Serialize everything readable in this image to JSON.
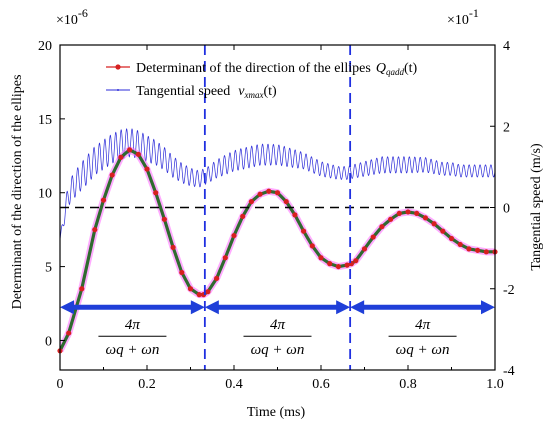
{
  "chart_data": {
    "type": "line",
    "xlabel": "Time (ms)",
    "ylabel_left": "Determinant of the direction of the ellipes",
    "ylabel_right": "Tangential speed (m/s)",
    "xlim": [
      0,
      1
    ],
    "ylim_left": [
      -2,
      20
    ],
    "ylim_right": [
      -4,
      4
    ],
    "x_ticks": [
      "0",
      "0.2",
      "0.4",
      "0.6",
      "0.8",
      "1.0"
    ],
    "y_left_ticks": [
      "0",
      "5",
      "10",
      "15",
      "20"
    ],
    "y_right_ticks": [
      "-4",
      "-2",
      "0",
      "2",
      "4"
    ],
    "left_multiplier": {
      "base": "×10",
      "exp": "-6"
    },
    "right_multiplier": {
      "base": "×10",
      "exp": "-1"
    },
    "legend": [
      {
        "name": "Determinant of the direction of the ellipes",
        "math": "Q",
        "sub": "qadd",
        "arg": "(t)",
        "color": "#d62020",
        "marker": "circle"
      },
      {
        "name": "Tangential speed",
        "math": "v",
        "sub": "xmax",
        "arg": "(t)",
        "color": "#2b2bd8",
        "marker": "dot"
      }
    ],
    "series": [
      {
        "name": "Determinant of the direction of the ellipes",
        "axis": "left",
        "color": "#d62020",
        "x": [
          0,
          0.02,
          0.05,
          0.08,
          0.1,
          0.12,
          0.14,
          0.16,
          0.18,
          0.2,
          0.22,
          0.24,
          0.26,
          0.28,
          0.3,
          0.32,
          0.33,
          0.34,
          0.36,
          0.38,
          0.4,
          0.42,
          0.44,
          0.46,
          0.48,
          0.5,
          0.52,
          0.54,
          0.56,
          0.58,
          0.6,
          0.62,
          0.64,
          0.66,
          0.67,
          0.68,
          0.7,
          0.72,
          0.74,
          0.76,
          0.78,
          0.8,
          0.82,
          0.84,
          0.86,
          0.88,
          0.9,
          0.92,
          0.94,
          0.96,
          0.98,
          1.0
        ],
        "values": [
          -0.7,
          0.5,
          3.5,
          7.5,
          9.5,
          11.2,
          12.4,
          12.9,
          12.6,
          11.6,
          10.0,
          8.2,
          6.3,
          4.6,
          3.5,
          3.1,
          3.1,
          3.3,
          4.2,
          5.6,
          7.1,
          8.4,
          9.4,
          9.9,
          10.1,
          10.0,
          9.4,
          8.5,
          7.4,
          6.4,
          5.6,
          5.2,
          5.0,
          5.1,
          5.2,
          5.4,
          6.2,
          7.0,
          7.7,
          8.2,
          8.6,
          8.7,
          8.6,
          8.3,
          7.9,
          7.4,
          6.9,
          6.5,
          6.2,
          6.1,
          6.0,
          6.0
        ]
      },
      {
        "name": "Tangential speed",
        "axis": "right",
        "color": "#2b2bd8",
        "oscillation_period": 0.0125,
        "x": [
          0,
          0.01,
          0.02,
          0.04,
          0.06,
          0.08,
          0.1,
          0.12,
          0.14,
          0.16,
          0.18,
          0.2,
          0.22,
          0.24,
          0.26,
          0.28,
          0.3,
          0.32,
          0.34,
          0.36,
          0.38,
          0.4,
          0.42,
          0.44,
          0.46,
          0.48,
          0.5,
          0.52,
          0.54,
          0.56,
          0.58,
          0.6,
          0.62,
          0.64,
          0.66,
          0.68,
          0.7,
          0.72,
          0.74,
          0.76,
          0.78,
          0.8,
          0.82,
          0.84,
          0.86,
          0.88,
          0.9,
          0.92,
          0.94,
          0.96,
          0.98,
          1.0
        ],
        "values": [
          -0.8,
          -0.2,
          0.35,
          0.65,
          0.9,
          1.15,
          1.3,
          1.45,
          1.55,
          1.6,
          1.55,
          1.45,
          1.35,
          1.2,
          1.0,
          0.85,
          0.75,
          0.7,
          0.8,
          0.95,
          1.05,
          1.15,
          1.2,
          1.25,
          1.3,
          1.3,
          1.3,
          1.25,
          1.2,
          1.15,
          1.05,
          0.95,
          0.9,
          0.85,
          0.85,
          0.9,
          0.95,
          1.0,
          1.05,
          1.05,
          1.05,
          1.05,
          1.05,
          1.05,
          1.0,
          0.95,
          0.95,
          0.9,
          0.9,
          0.9,
          0.9,
          0.9
        ],
        "amplitude": [
          0.05,
          0.2,
          0.3,
          0.32,
          0.35,
          0.35,
          0.36,
          0.36,
          0.36,
          0.35,
          0.34,
          0.32,
          0.3,
          0.28,
          0.26,
          0.24,
          0.22,
          0.2,
          0.2,
          0.22,
          0.24,
          0.25,
          0.26,
          0.26,
          0.26,
          0.26,
          0.25,
          0.24,
          0.22,
          0.2,
          0.19,
          0.18,
          0.17,
          0.16,
          0.16,
          0.17,
          0.18,
          0.19,
          0.2,
          0.2,
          0.2,
          0.2,
          0.19,
          0.18,
          0.17,
          0.16,
          0.16,
          0.15,
          0.15,
          0.15,
          0.15,
          0.15
        ]
      }
    ],
    "horizontal_reference": {
      "axis": "right",
      "value": 0,
      "style": "dashed",
      "color": "#000000"
    },
    "vertical_lines": [
      {
        "x": 0.333
      },
      {
        "x": 0.667
      }
    ],
    "period_arrows": [
      {
        "from": 0,
        "to": 0.333,
        "text": "4π",
        "denominator": "ωq + ωn"
      },
      {
        "from": 0.333,
        "to": 0.667,
        "text": "4π",
        "denominator": "ωq + ωn"
      },
      {
        "from": 0.667,
        "to": 1.0,
        "text": "4π",
        "denominator": "ωq + ωn"
      }
    ]
  }
}
